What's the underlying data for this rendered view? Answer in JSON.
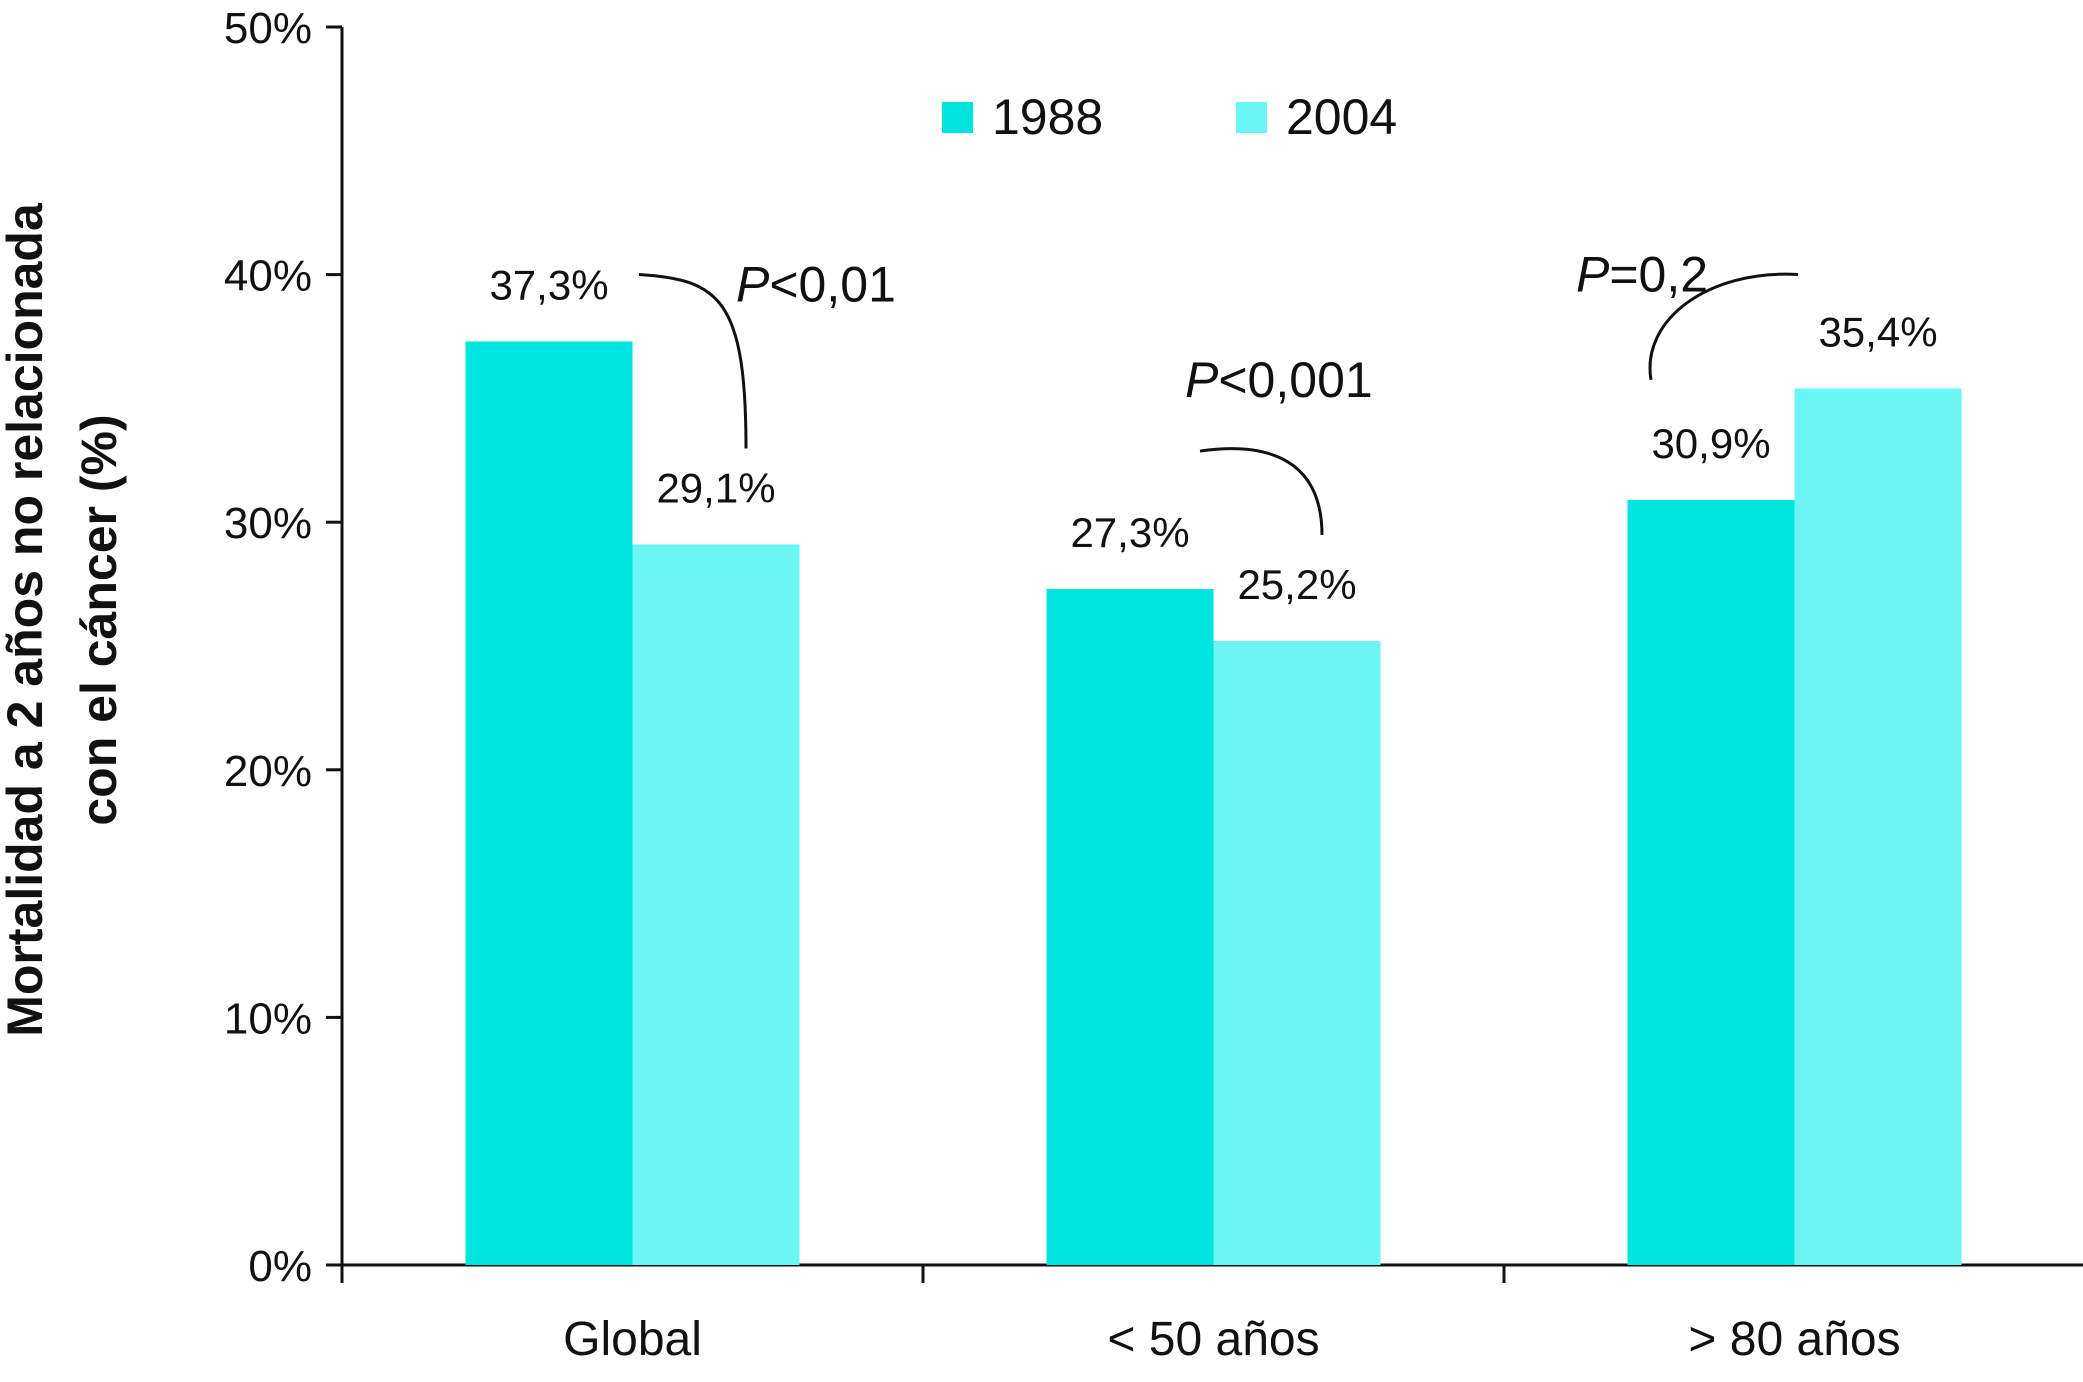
{
  "chart_data": {
    "type": "bar",
    "ylabel_lines": [
      "Mortalidad a 2 años no relacionada",
      "con el cáncer (%)"
    ],
    "xlabel": "",
    "ylim": [
      0,
      50
    ],
    "yticks": [
      "0%",
      "10%",
      "20%",
      "30%",
      "40%",
      "50%"
    ],
    "categories": [
      "Global",
      "< 50 años",
      "> 80 años"
    ],
    "series": [
      {
        "name": "1988",
        "color": "#00e5df",
        "values": [
          37.3,
          27.3,
          30.9
        ],
        "labels": [
          "37,3%",
          "27,3%",
          "30,9%"
        ]
      },
      {
        "name": "2004",
        "color": "#6bf5f5",
        "values": [
          29.1,
          25.2,
          35.4
        ],
        "labels": [
          "29,1%",
          "25,2%",
          "35,4%"
        ]
      }
    ],
    "legend_position": "top",
    "grid": false,
    "annotations": [
      {
        "category": "Global",
        "p_symbol": "P",
        "p_rest": "<0,01"
      },
      {
        "category": "< 50 años",
        "p_symbol": "P",
        "p_rest": "<0,001"
      },
      {
        "category": "> 80 años",
        "p_symbol": "P",
        "p_rest": "=0,2"
      }
    ]
  }
}
